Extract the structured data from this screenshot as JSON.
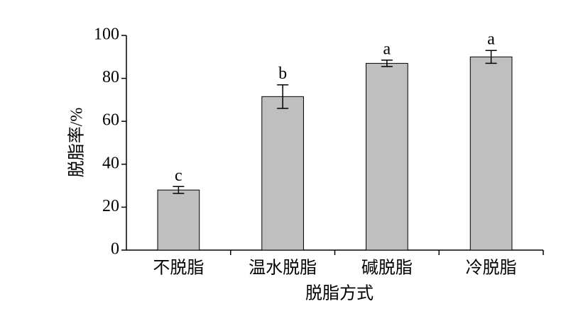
{
  "chart_data": {
    "type": "bar",
    "xlabel": "脱脂方式",
    "ylabel": "脱脂率/%",
    "categories": [
      "不脱脂",
      "温水脱脂",
      "碱脱脂",
      "冷脱脂"
    ],
    "values": [
      28,
      71.5,
      87,
      90
    ],
    "errors": [
      1.6,
      5.5,
      1.5,
      3
    ],
    "annotations": [
      "c",
      "b",
      "a",
      "a"
    ],
    "color": "#bfbfbf",
    "ylim": [
      0,
      100
    ],
    "yticks": [
      0,
      20,
      40,
      60,
      80,
      100
    ],
    "grid": false
  }
}
